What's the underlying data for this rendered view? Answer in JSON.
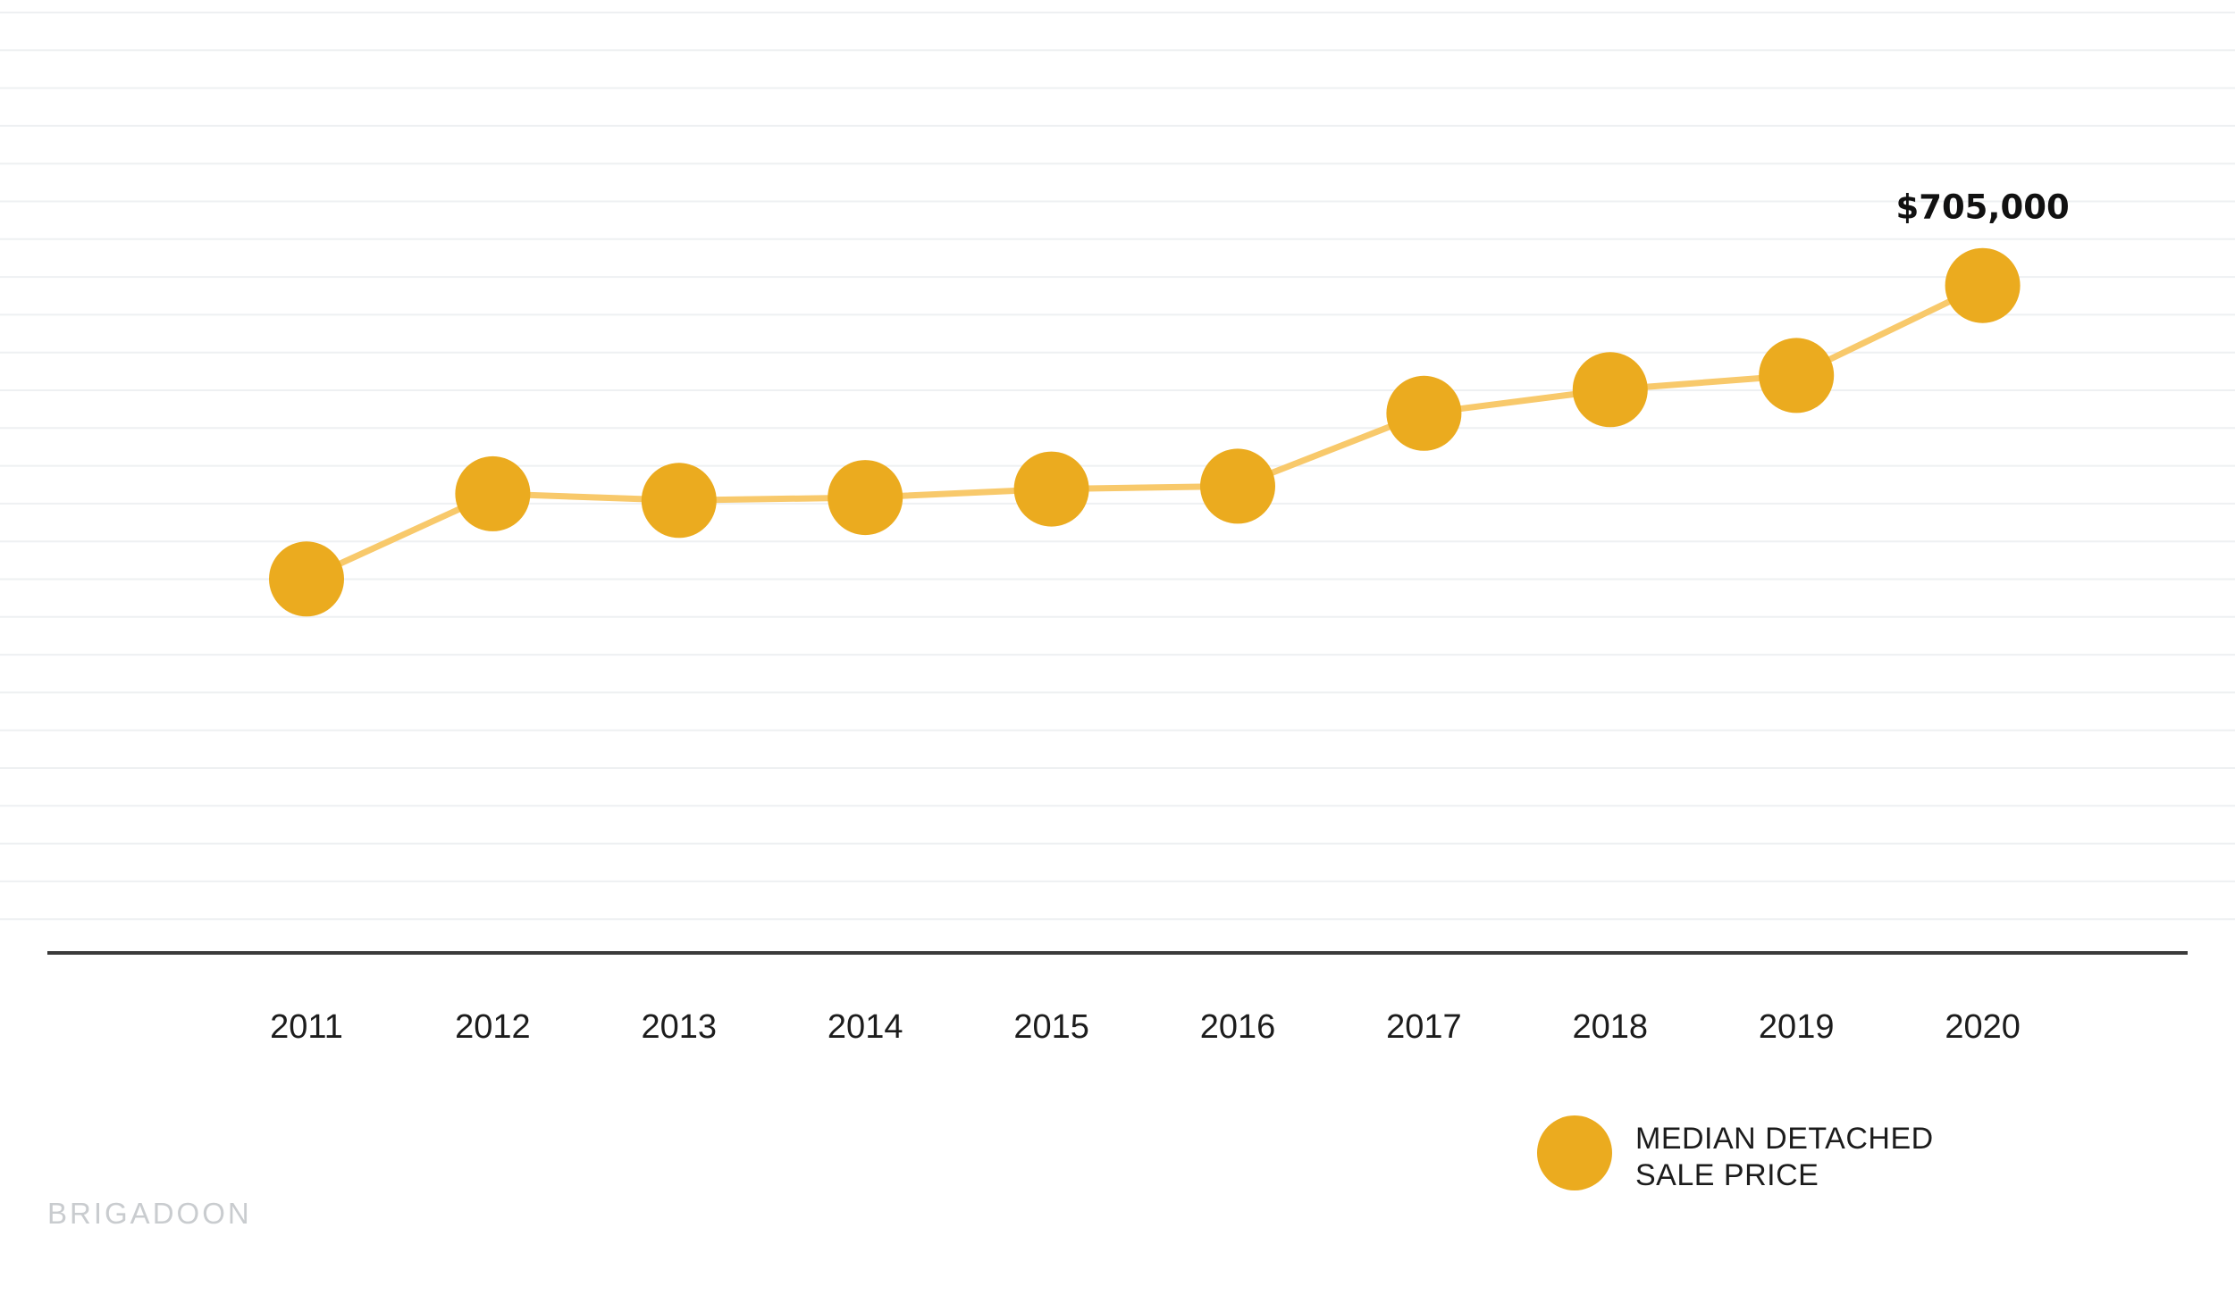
{
  "chart_data": {
    "type": "line",
    "x": [
      "2011",
      "2012",
      "2013",
      "2014",
      "2015",
      "2016",
      "2017",
      "2018",
      "2019",
      "2020"
    ],
    "series": [
      {
        "name": "MEDIAN DETACHED SALE PRICE",
        "values": [
          395000,
          485000,
          478000,
          481000,
          490000,
          493000,
          570000,
          595000,
          610000,
          705000
        ]
      }
    ],
    "data_labels": [
      {
        "x": "2020",
        "text": "$705,000"
      }
    ],
    "ylim": [
      0,
      1250000
    ],
    "grid": true,
    "legend": {
      "position": "bottom-right",
      "lines": [
        "MEDIAN DETACHED",
        "SALE PRICE"
      ]
    },
    "title": "",
    "xlabel": "",
    "ylabel": ""
  },
  "colors": {
    "marker": "#ebab1f",
    "line": "#f8c96b",
    "axis": "#3a3a3a",
    "grid": "#eef0f2",
    "watermark": "#c9cccf"
  },
  "watermark": "BRIGADOON"
}
